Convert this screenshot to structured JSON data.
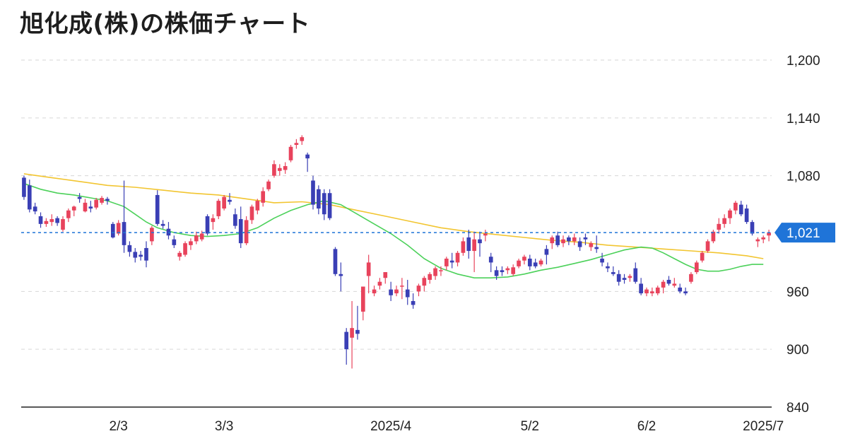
{
  "title": "旭化成(株)の株価チャート",
  "colors": {
    "up": "#e8435c",
    "down": "#3a3fb5",
    "ma_short": "#4cd15a",
    "ma_long": "#f2c530",
    "last_price": "#1f74d8",
    "grid": "#d6d6d6",
    "axis": "#222222"
  },
  "chart_data": {
    "type": "candlestick",
    "title": "旭化成(株)の株価チャート",
    "ylim": [
      840,
      1200
    ],
    "y_ticks": [
      "1,200",
      "1,140",
      "1,080",
      "960",
      "900",
      "840"
    ],
    "x_ticks": [
      {
        "label": "2/3",
        "index": 17
      },
      {
        "label": "3/3",
        "index": 36
      },
      {
        "label": "2025/4",
        "index": 66
      },
      {
        "label": "5/2",
        "index": 91
      },
      {
        "label": "6/2",
        "index": 112
      },
      {
        "label": "2025/7",
        "index": 133
      }
    ],
    "last_price": 1021,
    "last_price_label": "1,021",
    "grid": true,
    "candles": [
      [
        1078,
        1080,
        1055,
        1058
      ],
      [
        1070,
        1076,
        1042,
        1045
      ],
      [
        1048,
        1052,
        1040,
        1043
      ],
      [
        1038,
        1042,
        1026,
        1030
      ],
      [
        1030,
        1036,
        1027,
        1033
      ],
      [
        1032,
        1040,
        1028,
        1035
      ],
      [
        1036,
        1038,
        1028,
        1031
      ],
      [
        1024,
        1038,
        1022,
        1035
      ],
      [
        1036,
        1046,
        1032,
        1044
      ],
      [
        1044,
        1049,
        1038,
        1048
      ],
      [
        1058,
        1062,
        1052,
        1056
      ],
      [
        1043,
        1056,
        1042,
        1052
      ],
      [
        1048,
        1054,
        1042,
        1046
      ],
      [
        1047,
        1057,
        1045,
        1055
      ],
      [
        1052,
        1059,
        1050,
        1057
      ],
      [
        1056,
        1058,
        1050,
        1054
      ],
      [
        1030,
        1032,
        1015,
        1016
      ],
      [
        1020,
        1034,
        1018,
        1031
      ],
      [
        1032,
        1075,
        1000,
        1008
      ],
      [
        1008,
        1012,
        996,
        1001
      ],
      [
        1001,
        1005,
        990,
        995
      ],
      [
        998,
        1002,
        992,
        996
      ],
      [
        1005,
        1012,
        985,
        992
      ],
      [
        1012,
        1028,
        1008,
        1026
      ],
      [
        1060,
        1065,
        1028,
        1030
      ],
      [
        1030,
        1034,
        1025,
        1028
      ],
      [
        1025,
        1032,
        1014,
        1018
      ],
      [
        1014,
        1018,
        1005,
        1008
      ],
      [
        996,
        1002,
        992,
        1000
      ],
      [
        998,
        1012,
        996,
        1010
      ],
      [
        1008,
        1015,
        1003,
        1012
      ],
      [
        1012,
        1022,
        1009,
        1018
      ],
      [
        1014,
        1023,
        1012,
        1020
      ],
      [
        1038,
        1040,
        1018,
        1020
      ],
      [
        1032,
        1040,
        1024,
        1036
      ],
      [
        1038,
        1056,
        1035,
        1054
      ],
      [
        1046,
        1060,
        1044,
        1058
      ],
      [
        1055,
        1062,
        1050,
        1053
      ],
      [
        1040,
        1046,
        1025,
        1028
      ],
      [
        1035,
        1048,
        1005,
        1010
      ],
      [
        1010,
        1038,
        1008,
        1034
      ],
      [
        1034,
        1050,
        1030,
        1048
      ],
      [
        1044,
        1056,
        1040,
        1054
      ],
      [
        1052,
        1068,
        1048,
        1064
      ],
      [
        1066,
        1076,
        1064,
        1074
      ],
      [
        1080,
        1096,
        1078,
        1092
      ],
      [
        1085,
        1092,
        1080,
        1088
      ],
      [
        1086,
        1094,
        1082,
        1090
      ],
      [
        1096,
        1112,
        1094,
        1110
      ],
      [
        1112,
        1118,
        1108,
        1114
      ],
      [
        1116,
        1122,
        1112,
        1120
      ],
      [
        1102,
        1104,
        1084,
        1098
      ],
      [
        1075,
        1080,
        1045,
        1050
      ],
      [
        1066,
        1070,
        1040,
        1046
      ],
      [
        1062,
        1066,
        1034,
        1040
      ],
      [
        1062,
        1066,
        1034,
        1036
      ],
      [
        1004,
        1006,
        976,
        978
      ],
      [
        978,
        990,
        960,
        976
      ],
      [
        918,
        922,
        884,
        900
      ],
      [
        912,
        950,
        880,
        922
      ],
      [
        920,
        945,
        910,
        916
      ],
      [
        939,
        964,
        930,
        965
      ],
      [
        976,
        998,
        958,
        990
      ],
      [
        958,
        966,
        955,
        962
      ],
      [
        966,
        974,
        962,
        970
      ],
      [
        974,
        980,
        968,
        980
      ],
      [
        962,
        970,
        950,
        956
      ],
      [
        958,
        966,
        955,
        962
      ],
      [
        966,
        974,
        952,
        966
      ],
      [
        962,
        972,
        946,
        954
      ],
      [
        950,
        958,
        942,
        946
      ],
      [
        960,
        968,
        955,
        966
      ],
      [
        966,
        976,
        960,
        974
      ],
      [
        972,
        980,
        968,
        978
      ],
      [
        976,
        986,
        972,
        984
      ],
      [
        982,
        986,
        976,
        982
      ],
      [
        986,
        996,
        982,
        994
      ],
      [
        992,
        1000,
        984,
        990
      ],
      [
        990,
        1002,
        986,
        1000
      ],
      [
        1000,
        1016,
        997,
        1012
      ],
      [
        1016,
        1024,
        994,
        1002
      ],
      [
        1002,
        1022,
        980,
        1014
      ],
      [
        1014,
        1022,
        996,
        1010
      ],
      [
        1018,
        1024,
        1012,
        1020
      ],
      [
        996,
        1000,
        980,
        990
      ],
      [
        982,
        986,
        972,
        976
      ],
      [
        982,
        986,
        976,
        980
      ],
      [
        982,
        986,
        978,
        984
      ],
      [
        978,
        988,
        976,
        985
      ],
      [
        986,
        994,
        984,
        992
      ],
      [
        992,
        998,
        988,
        996
      ],
      [
        994,
        998,
        982,
        986
      ],
      [
        990,
        994,
        984,
        986
      ],
      [
        988,
        994,
        986,
        992
      ],
      [
        1004,
        1008,
        988,
        998
      ],
      [
        1010,
        1018,
        1004,
        1016
      ],
      [
        1018,
        1022,
        1006,
        1008
      ],
      [
        1010,
        1018,
        1006,
        1014
      ],
      [
        1016,
        1018,
        1008,
        1012
      ],
      [
        1012,
        1020,
        1008,
        1016
      ],
      [
        1012,
        1016,
        1002,
        1006
      ],
      [
        1016,
        1020,
        1008,
        1014
      ],
      [
        1006,
        1012,
        1002,
        1010
      ],
      [
        1006,
        1018,
        1000,
        1004
      ],
      [
        994,
        1000,
        986,
        990
      ],
      [
        986,
        990,
        980,
        984
      ],
      [
        980,
        986,
        976,
        978
      ],
      [
        978,
        982,
        966,
        970
      ],
      [
        974,
        978,
        968,
        972
      ],
      [
        974,
        978,
        970,
        976
      ],
      [
        984,
        990,
        968,
        970
      ],
      [
        968,
        974,
        956,
        958
      ],
      [
        958,
        964,
        955,
        962
      ],
      [
        958,
        964,
        955,
        960
      ],
      [
        958,
        966,
        956,
        964
      ],
      [
        964,
        972,
        958,
        970
      ],
      [
        972,
        976,
        966,
        968
      ],
      [
        966,
        974,
        964,
        968
      ],
      [
        964,
        968,
        958,
        960
      ],
      [
        960,
        964,
        956,
        958
      ],
      [
        970,
        980,
        968,
        978
      ],
      [
        980,
        992,
        978,
        990
      ],
      [
        992,
        1002,
        990,
        1000
      ],
      [
        1002,
        1014,
        1000,
        1012
      ],
      [
        1012,
        1024,
        1010,
        1022
      ],
      [
        1024,
        1036,
        1020,
        1030
      ],
      [
        1030,
        1040,
        1026,
        1036
      ],
      [
        1036,
        1046,
        1030,
        1044
      ],
      [
        1044,
        1054,
        1040,
        1052
      ],
      [
        1050,
        1054,
        1038,
        1040
      ],
      [
        1046,
        1050,
        1030,
        1032
      ],
      [
        1032,
        1034,
        1018,
        1020
      ],
      [
        1012,
        1016,
        1006,
        1014
      ],
      [
        1014,
        1018,
        1010,
        1016
      ],
      [
        1018,
        1024,
        1012,
        1021
      ]
    ],
    "ma_short": [
      [
        0,
        1072
      ],
      [
        3,
        1066
      ],
      [
        6,
        1062
      ],
      [
        9,
        1060
      ],
      [
        12,
        1057
      ],
      [
        15,
        1054
      ],
      [
        18,
        1048
      ],
      [
        20,
        1040
      ],
      [
        22,
        1032
      ],
      [
        24,
        1026
      ],
      [
        27,
        1021
      ],
      [
        30,
        1018
      ],
      [
        33,
        1017
      ],
      [
        36,
        1018
      ],
      [
        39,
        1020
      ],
      [
        42,
        1026
      ],
      [
        45,
        1036
      ],
      [
        48,
        1044
      ],
      [
        51,
        1050
      ],
      [
        54,
        1054
      ],
      [
        57,
        1050
      ],
      [
        60,
        1040
      ],
      [
        63,
        1030
      ],
      [
        66,
        1020
      ],
      [
        69,
        1008
      ],
      [
        72,
        994
      ],
      [
        75,
        984
      ],
      [
        78,
        978
      ],
      [
        81,
        974
      ],
      [
        84,
        974
      ],
      [
        87,
        975
      ],
      [
        90,
        978
      ],
      [
        93,
        982
      ],
      [
        96,
        985
      ],
      [
        99,
        989
      ],
      [
        102,
        993
      ],
      [
        105,
        998
      ],
      [
        108,
        1003
      ],
      [
        111,
        1006
      ],
      [
        113,
        1005
      ],
      [
        115,
        1000
      ],
      [
        117,
        994
      ],
      [
        119,
        988
      ],
      [
        121,
        983
      ],
      [
        123,
        981
      ],
      [
        125,
        981
      ],
      [
        127,
        983
      ],
      [
        129,
        986
      ],
      [
        131,
        988
      ],
      [
        133,
        988
      ]
    ],
    "ma_long": [
      [
        0,
        1082
      ],
      [
        5,
        1078
      ],
      [
        10,
        1074
      ],
      [
        15,
        1070
      ],
      [
        20,
        1068
      ],
      [
        25,
        1065
      ],
      [
        30,
        1062
      ],
      [
        35,
        1060
      ],
      [
        40,
        1056
      ],
      [
        45,
        1052
      ],
      [
        50,
        1053
      ],
      [
        55,
        1050
      ],
      [
        60,
        1044
      ],
      [
        65,
        1038
      ],
      [
        70,
        1032
      ],
      [
        75,
        1026
      ],
      [
        80,
        1022
      ],
      [
        85,
        1019
      ],
      [
        90,
        1016
      ],
      [
        95,
        1013
      ],
      [
        100,
        1011
      ],
      [
        105,
        1008
      ],
      [
        110,
        1006
      ],
      [
        115,
        1004
      ],
      [
        120,
        1002
      ],
      [
        125,
        1000
      ],
      [
        130,
        997
      ],
      [
        133,
        994
      ]
    ]
  }
}
